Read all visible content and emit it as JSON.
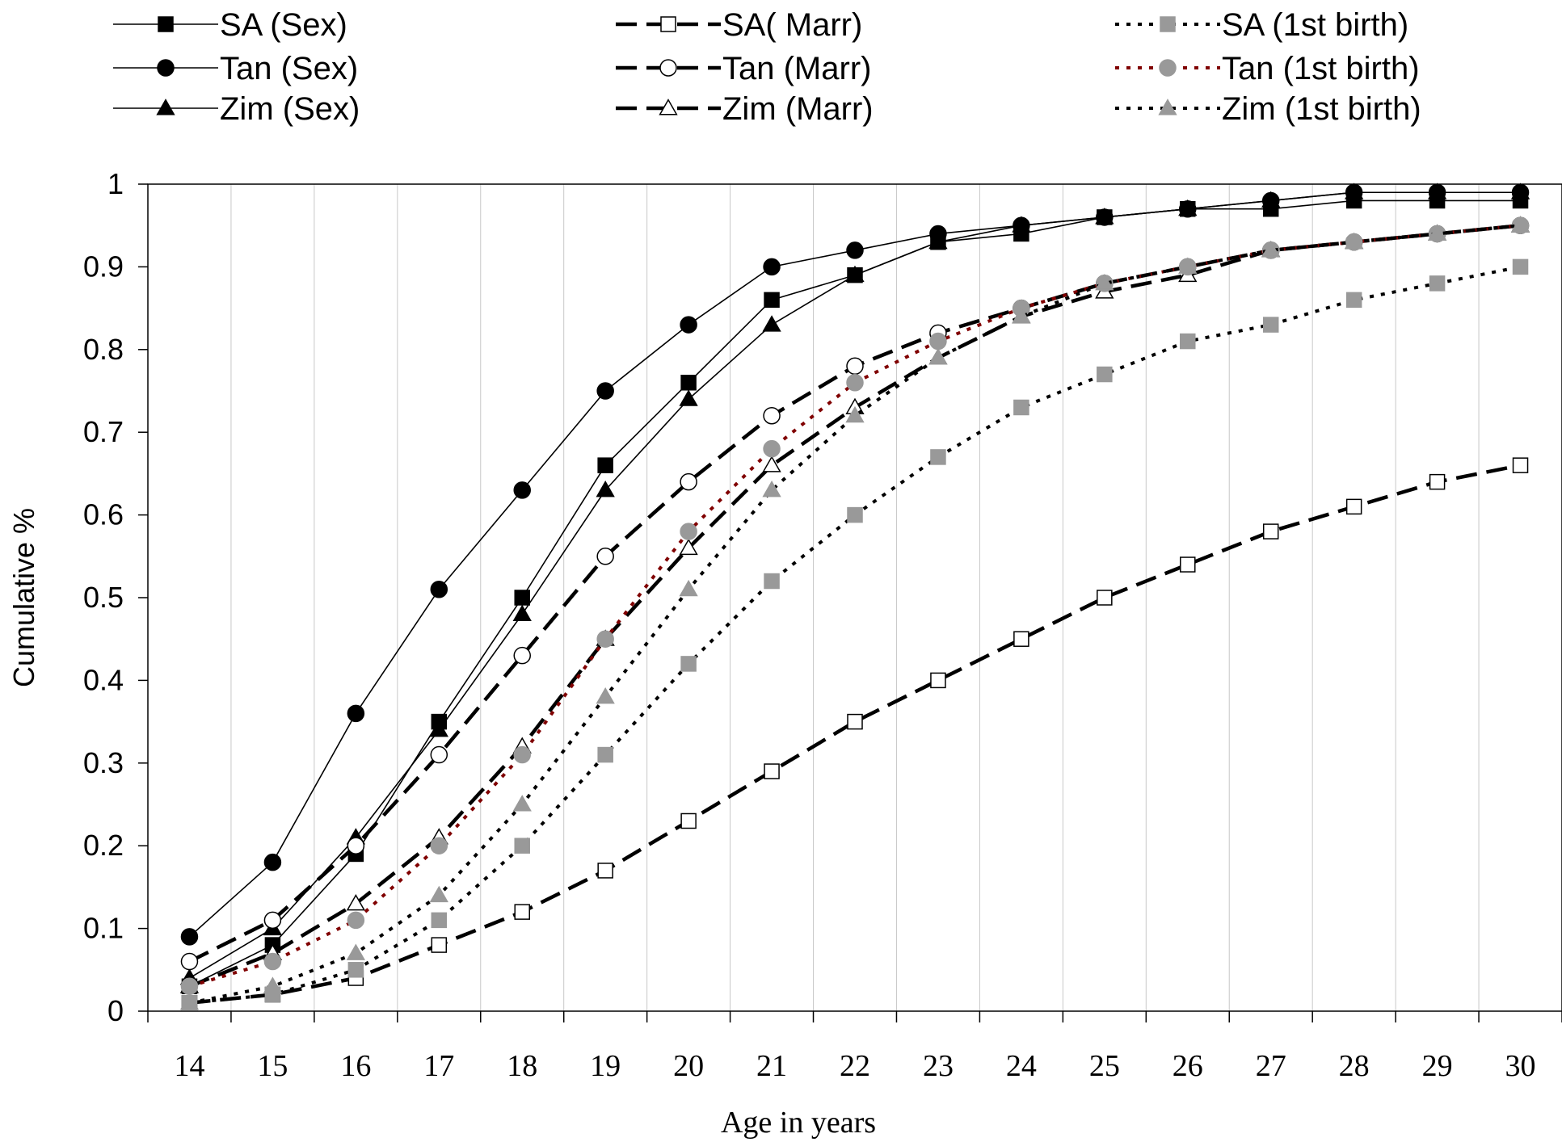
{
  "chart_data": {
    "type": "line",
    "title": "",
    "xlabel": "Age in years",
    "ylabel": "Cumulative %",
    "x": [
      14,
      15,
      16,
      17,
      18,
      19,
      20,
      21,
      22,
      23,
      24,
      25,
      26,
      27,
      28,
      29,
      30
    ],
    "xlim": [
      13.5,
      30.5
    ],
    "ylim": [
      0,
      1
    ],
    "yticks": [
      0,
      0.1,
      0.2,
      0.3,
      0.4,
      0.5,
      0.6,
      0.7,
      0.8,
      0.9,
      1
    ],
    "ytick_labels": [
      "0",
      "0.1",
      "0.2",
      "0.3",
      "0.4",
      "0.5",
      "0.6",
      "0.7",
      "0.8",
      "0.9",
      "1"
    ],
    "grid": "vertical",
    "legend_position": "top",
    "series": [
      {
        "name": "SA (Sex)",
        "line": "solid",
        "marker": "square",
        "marker_fill": "#000000",
        "color": "#000000",
        "values": [
          0.03,
          0.08,
          0.19,
          0.35,
          0.5,
          0.66,
          0.76,
          0.86,
          0.89,
          0.93,
          0.94,
          0.96,
          0.97,
          0.97,
          0.98,
          0.98,
          0.98
        ]
      },
      {
        "name": "Tan (Sex)",
        "line": "solid",
        "marker": "circle",
        "marker_fill": "#000000",
        "color": "#000000",
        "values": [
          0.09,
          0.18,
          0.36,
          0.51,
          0.63,
          0.75,
          0.83,
          0.9,
          0.92,
          0.94,
          0.95,
          0.96,
          0.97,
          0.98,
          0.99,
          0.99,
          0.99
        ]
      },
      {
        "name": "Zim (Sex)",
        "line": "solid",
        "marker": "triangle",
        "marker_fill": "#000000",
        "color": "#000000",
        "values": [
          0.04,
          0.1,
          0.21,
          0.34,
          0.48,
          0.63,
          0.74,
          0.83,
          0.89,
          0.93,
          0.95,
          0.96,
          0.97,
          0.98,
          0.99,
          0.99,
          0.99
        ]
      },
      {
        "name": "SA( Marr)",
        "line": "dashed",
        "marker": "square",
        "marker_fill": "#ffffff",
        "color": "#000000",
        "values": [
          0.01,
          0.02,
          0.04,
          0.08,
          0.12,
          0.17,
          0.23,
          0.29,
          0.35,
          0.4,
          0.45,
          0.5,
          0.54,
          0.58,
          0.61,
          0.64,
          0.66
        ]
      },
      {
        "name": "Tan (Marr)",
        "line": "dashed",
        "marker": "circle",
        "marker_fill": "#ffffff",
        "color": "#000000",
        "values": [
          0.06,
          0.11,
          0.2,
          0.31,
          0.43,
          0.55,
          0.64,
          0.72,
          0.78,
          0.82,
          0.85,
          0.88,
          0.9,
          0.92,
          0.93,
          0.94,
          0.95
        ]
      },
      {
        "name": "Zim (Marr)",
        "line": "dashed",
        "marker": "triangle",
        "marker_fill": "#ffffff",
        "color": "#000000",
        "values": [
          0.03,
          0.07,
          0.13,
          0.21,
          0.32,
          0.45,
          0.56,
          0.66,
          0.73,
          0.79,
          0.84,
          0.87,
          0.89,
          0.92,
          0.93,
          0.94,
          0.95
        ]
      },
      {
        "name": "SA (1st birth)",
        "line": "dotted",
        "marker": "square",
        "marker_fill": "#999999",
        "color": "#000000",
        "values": [
          0.01,
          0.02,
          0.05,
          0.11,
          0.2,
          0.31,
          0.42,
          0.52,
          0.6,
          0.67,
          0.73,
          0.77,
          0.81,
          0.83,
          0.86,
          0.88,
          0.9
        ]
      },
      {
        "name": "Tan (1st birth)",
        "line": "dotted",
        "marker": "circle",
        "marker_fill": "#999999",
        "color": "#800000",
        "values": [
          0.03,
          0.06,
          0.11,
          0.2,
          0.31,
          0.45,
          0.58,
          0.68,
          0.76,
          0.81,
          0.85,
          0.88,
          0.9,
          0.92,
          0.93,
          0.94,
          0.95
        ]
      },
      {
        "name": "Zim (1st birth)",
        "line": "dotted",
        "marker": "triangle",
        "marker_fill": "#999999",
        "color": "#000000",
        "values": [
          0.01,
          0.03,
          0.07,
          0.14,
          0.25,
          0.38,
          0.51,
          0.63,
          0.72,
          0.79,
          0.84,
          0.88,
          0.9,
          0.92,
          0.93,
          0.94,
          0.95
        ]
      }
    ]
  }
}
